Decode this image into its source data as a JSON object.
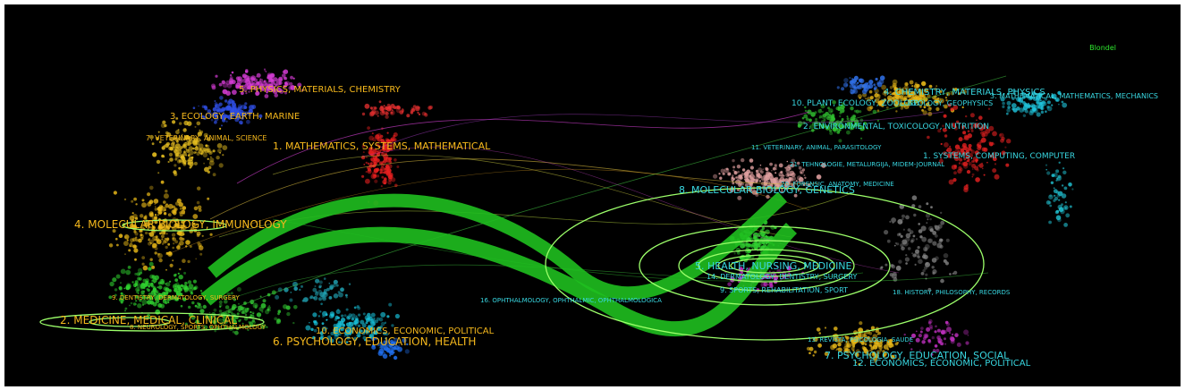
{
  "brand_label": "Blondel",
  "left_clusters": [
    {
      "id": "5",
      "label": "5. PHYSICS, MATERIALS, CHEMISTRY"
    },
    {
      "id": "3",
      "label": "3. ECOLOGY, EARTH, MARINE"
    },
    {
      "id": "7",
      "label": "7. VETERINARY, ANIMAL, SCIENCE"
    },
    {
      "id": "1",
      "label": "1. MATHEMATICS, SYSTEMS, MATHEMATICAL"
    },
    {
      "id": "4",
      "label": "4. MOLECULAR BIOLOGY, IMMUNOLOGY"
    },
    {
      "id": "9",
      "label": "9. DENTISTRY, DERMATOLOGY, SURGERY"
    },
    {
      "id": "2",
      "label": "2. MEDICINE, MEDICAL, CLINICAL"
    },
    {
      "id": "8",
      "label": "8. NEUROLOGY, SPORTS, OPHTHALMOLOGY"
    },
    {
      "id": "10",
      "label": "10. ECONOMICS, ECONOMIC, POLITICAL"
    },
    {
      "id": "6",
      "label": "6. PSYCHOLOGY, EDUCATION, HEALTH"
    }
  ],
  "right_clusters": [
    {
      "id": "4",
      "label": "4. CHEMISTRY, MATERIALS, PHYSICS"
    },
    {
      "id": "3",
      "label": "3. MATHEMATICAL, MATHEMATICS, MECHANICS"
    },
    {
      "id": "10",
      "label": "10. PLANT, ECOLOGY, ZOOLOGY"
    },
    {
      "id": "geo",
      "label": "GEOLOGY, GEOPHYSICS"
    },
    {
      "id": "2",
      "label": "2. ENVIRONMENTAL, TOXICOLOGY, NUTRITION"
    },
    {
      "id": "11",
      "label": "11. VETERINARY, ANIMAL, PARASITOLOGY"
    },
    {
      "id": "1",
      "label": "1. SYSTEMS, COMPUTING, COMPUTER"
    },
    {
      "id": "21",
      "label": "21. TEHNOLOGIE, METALURGIJA, MIDEM-JOURNAL"
    },
    {
      "id": "20",
      "label": "20. FORENSIC, ANATOMY, MEDICINE"
    },
    {
      "id": "8",
      "label": "8. MOLECULAR BIOLOGY, GENETICS"
    },
    {
      "id": "5",
      "label": "5. HEALTH, NURSING, MEDICINE"
    },
    {
      "id": "14",
      "label": "14. DERMATOLOGY, DENTISTRY, SURGERY"
    },
    {
      "id": "9",
      "label": "9. SPORTS, REHABILITATION, SPORT"
    },
    {
      "id": "18",
      "label": "18. HISTORY, PHILOSOPHY, RECORDS"
    },
    {
      "id": "16",
      "label": "16. OPHTHALMOLOGY, OPHTHALMIC, OPHTHALMOLOGICA"
    },
    {
      "id": "13",
      "label": "13. REVISTA, PSICOLOGIA, SAUDE"
    },
    {
      "id": "7",
      "label": "7. PSYCHOLOGY, EDUCATION, SOCIAL"
    },
    {
      "id": "12",
      "label": "12. ECONOMICS, ECONOMIC, POLITICAL"
    }
  ],
  "colors": {
    "background": "#000000",
    "left_label": "#f5b81c",
    "right_label": "#38d6e0",
    "flow": "#1fbf1f",
    "ellipse": "#9cff6a",
    "brand": "#2ee82e"
  }
}
